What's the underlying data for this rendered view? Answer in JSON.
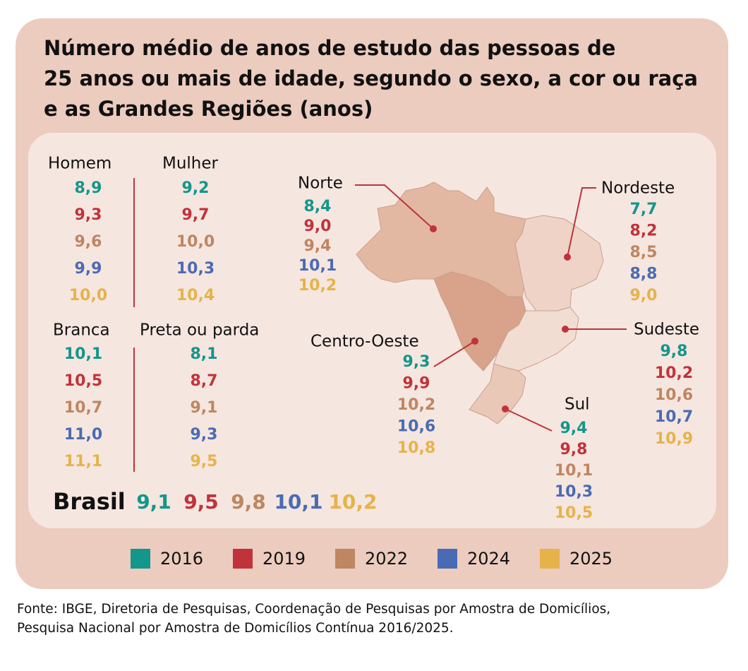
{
  "title_lines": [
    "Número médio de anos de estudo das pessoas de",
    "25 anos ou mais de idade, segundo o sexo, a cor ou raça",
    "e as Grandes Regiões (anos)"
  ],
  "legend": [
    {
      "label": "2016",
      "color": "#13968b"
    },
    {
      "label": "2019",
      "color": "#c0333a"
    },
    {
      "label": "2022",
      "color": "#be8661"
    },
    {
      "label": "2024",
      "color": "#4a6bb3"
    },
    {
      "label": "2025",
      "color": "#e6b34a"
    }
  ],
  "groups": [
    {
      "label": "Homem",
      "values": [
        "8,9",
        "9,3",
        "9,6",
        "9,9",
        "10,0"
      ]
    },
    {
      "label": "Mulher",
      "values": [
        "9,2",
        "9,7",
        "10,0",
        "10,3",
        "10,4"
      ]
    },
    {
      "label": "Branca",
      "values": [
        "10,1",
        "10,5",
        "10,7",
        "11,0",
        "11,1"
      ]
    },
    {
      "label": "Preta ou parda",
      "values": [
        "8,1",
        "8,7",
        "9,1",
        "9,3",
        "9,5"
      ]
    }
  ],
  "regions": [
    {
      "label": "Norte",
      "values": [
        "8,4",
        "9,0",
        "9,4",
        "10,1",
        "10,2"
      ]
    },
    {
      "label": "Nordeste",
      "values": [
        "7,7",
        "8,2",
        "8,5",
        "8,8",
        "9,0"
      ]
    },
    {
      "label": "Centro-Oeste",
      "values": [
        "9,3",
        "9,9",
        "10,2",
        "10,6",
        "10,8"
      ]
    },
    {
      "label": "Sudeste",
      "values": [
        "9,8",
        "10,2",
        "10,6",
        "10,7",
        "10,9"
      ]
    },
    {
      "label": "Sul",
      "values": [
        "9,4",
        "9,8",
        "10,1",
        "10,3",
        "10,5"
      ]
    }
  ],
  "brasil": {
    "label": "Brasil",
    "values": [
      "9,1",
      "9,5",
      "9,8",
      "10,1",
      "10,2"
    ]
  },
  "source_lines": [
    "Fonte: IBGE, Diretoria de Pesquisas, Coordenação de Pesquisas por Amostra de Domicílios,",
    "Pesquisa Nacional por Amostra de Domicílios Contínua 2016/2025."
  ]
}
